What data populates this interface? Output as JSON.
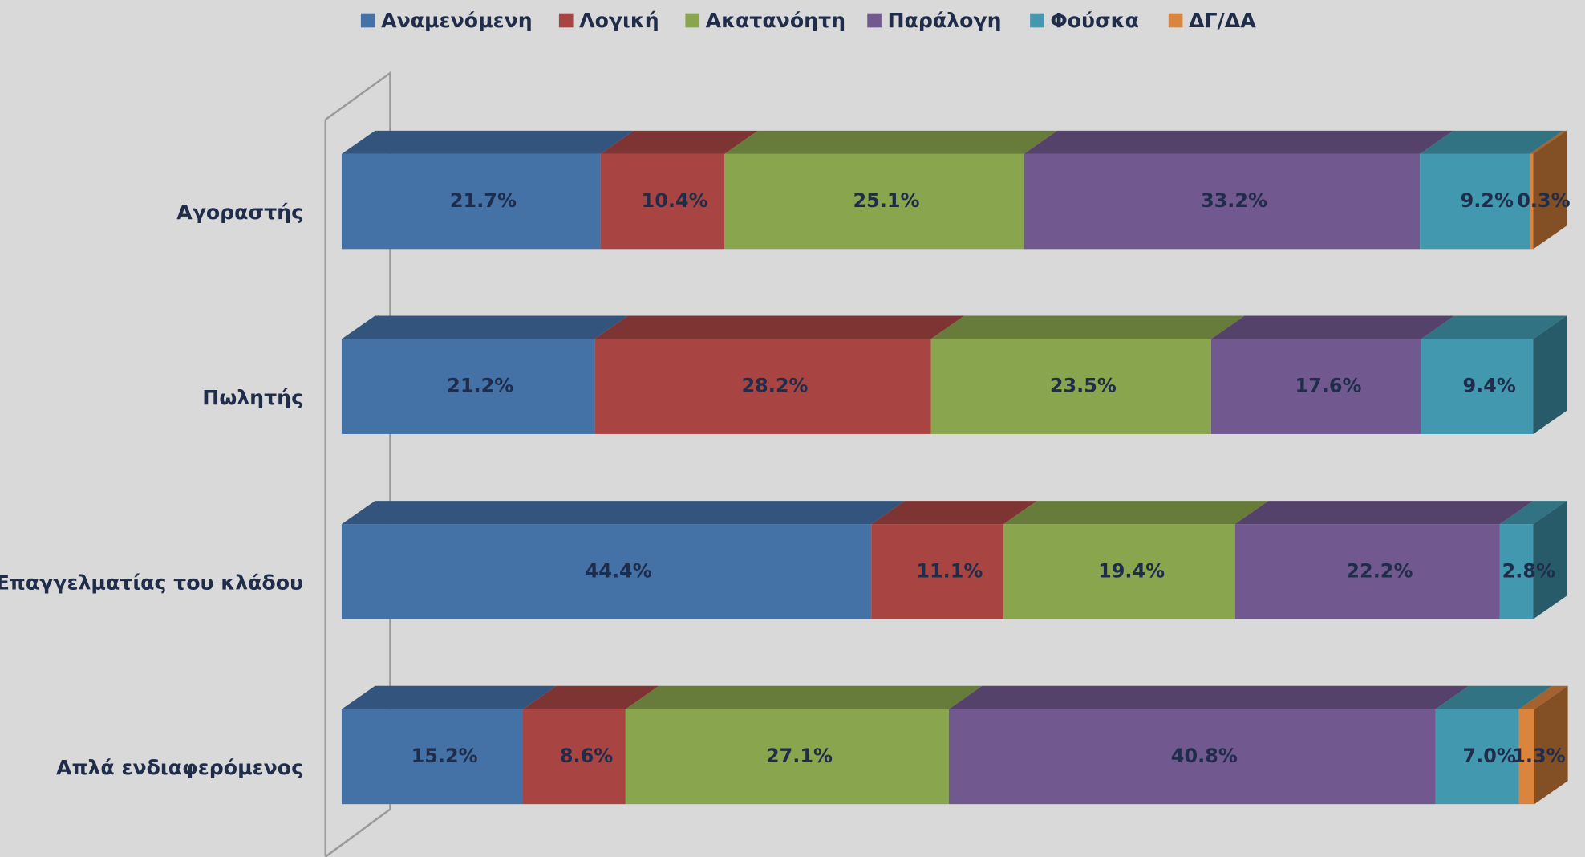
{
  "chart_data": {
    "type": "stacked-bar-3d",
    "categories": [
      "Αγοραστής",
      "Πωλητής",
      "Επαγγελματίας του κλάδου",
      "Απλά ενδιαφερόμενος"
    ],
    "xlim": [
      0,
      100
    ],
    "legend": "top",
    "series": [
      {
        "name": "Αναμενόμενη",
        "color": "#4471a6",
        "values": [
          21.7,
          21.2,
          44.4,
          15.2
        ],
        "value_labels": [
          "21.7%",
          "21.2%",
          "44.4%",
          "15.2%"
        ]
      },
      {
        "name": "Λογική",
        "color": "#a84543",
        "values": [
          10.4,
          28.2,
          11.1,
          8.6
        ],
        "value_labels": [
          "10.4%",
          "28.2%",
          "11.1%",
          "8.6%"
        ]
      },
      {
        "name": "Ακατανόητη",
        "color": "#89a54e",
        "values": [
          25.1,
          23.5,
          19.4,
          27.1
        ],
        "value_labels": [
          "25.1%",
          "23.5%",
          "19.4%",
          "27.1%"
        ]
      },
      {
        "name": "Παράλογη",
        "color": "#71588f",
        "values": [
          33.2,
          17.6,
          22.2,
          40.8
        ],
        "value_labels": [
          "33.2%",
          "17.6%",
          "22.2%",
          "40.8%"
        ]
      },
      {
        "name": "Φούσκα",
        "color": "#4198af",
        "values": [
          9.2,
          9.4,
          2.8,
          7.0
        ],
        "value_labels": [
          "9.2%",
          "9.4%",
          "2.8%",
          "7.0%"
        ]
      },
      {
        "name": "ΔΓ/ΔΑ",
        "color": "#db843d",
        "values": [
          0.3,
          null,
          null,
          1.3
        ],
        "value_labels": [
          "0.3%",
          null,
          null,
          "1.3%"
        ]
      }
    ]
  }
}
